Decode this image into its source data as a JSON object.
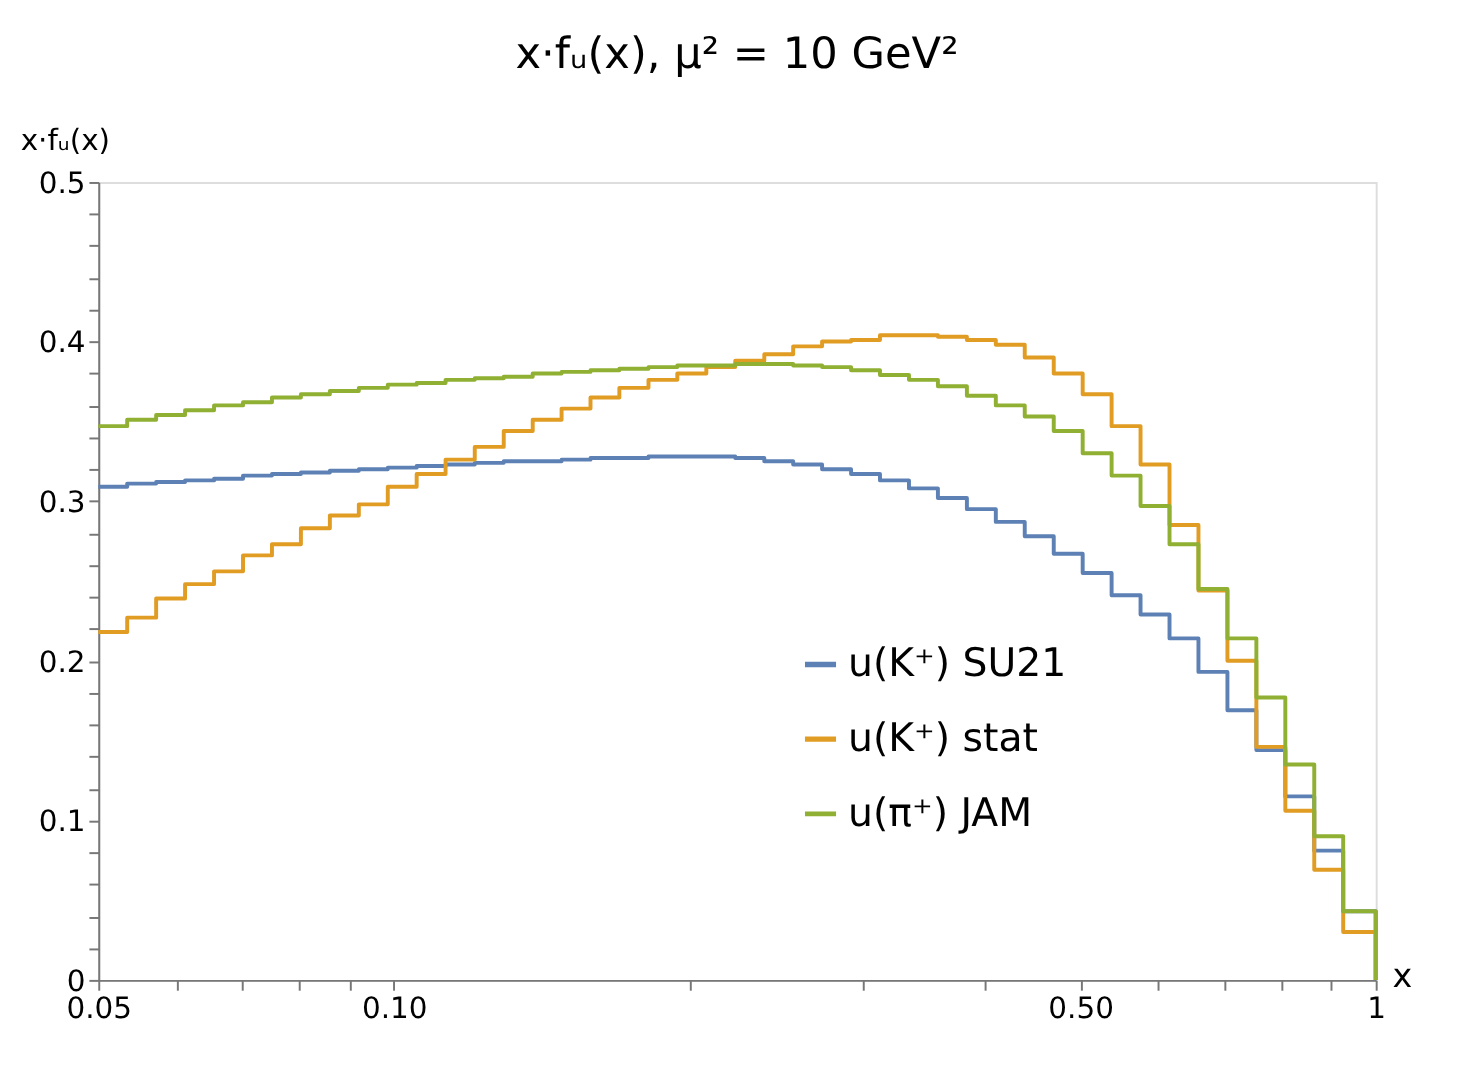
{
  "chart_data": {
    "type": "step",
    "title": "x·fᵤ(x), μ² = 10 GeV²",
    "xlabel": "x",
    "ylabel": "x·fᵤ(x)",
    "log": "x",
    "x": [
      0.05,
      0.05351,
      0.05727,
      0.06129,
      0.0656,
      0.07021,
      0.07514,
      0.08042,
      0.08607,
      0.09212,
      0.09859,
      0.1055,
      0.1129,
      0.1209,
      0.1294,
      0.1385,
      0.1482,
      0.1586,
      0.1697,
      0.1817,
      0.1944,
      0.2081,
      0.2227,
      0.2384,
      0.2551,
      0.273,
      0.2922,
      0.3127,
      0.3347,
      0.3582,
      0.3834,
      0.4103,
      0.4391,
      0.47,
      0.503,
      0.5383,
      0.5761,
      0.6166,
      0.6599,
      0.7063,
      0.7559,
      0.809,
      0.8658,
      0.9266,
      1.0
    ],
    "series": [
      {
        "name": "u(K⁺) SU21",
        "color": "#5e81b5",
        "values": [
          0.309,
          0.311,
          0.312,
          0.313,
          0.314,
          0.316,
          0.317,
          0.318,
          0.319,
          0.32,
          0.321,
          0.322,
          0.323,
          0.324,
          0.325,
          0.325,
          0.326,
          0.327,
          0.327,
          0.328,
          0.328,
          0.328,
          0.327,
          0.325,
          0.323,
          0.32,
          0.317,
          0.313,
          0.308,
          0.302,
          0.295,
          0.287,
          0.278,
          0.267,
          0.255,
          0.241,
          0.229,
          0.214,
          0.193,
          0.169,
          0.144,
          0.115,
          0.081,
          0.043,
          0
        ]
      },
      {
        "name": "u(K⁺) stat",
        "color": "#e19c24",
        "values": [
          0.218,
          0.227,
          0.239,
          0.248,
          0.256,
          0.266,
          0.273,
          0.283,
          0.291,
          0.298,
          0.309,
          0.317,
          0.326,
          0.334,
          0.344,
          0.351,
          0.358,
          0.365,
          0.371,
          0.376,
          0.38,
          0.384,
          0.388,
          0.392,
          0.397,
          0.4,
          0.401,
          0.404,
          0.404,
          0.403,
          0.401,
          0.398,
          0.39,
          0.38,
          0.367,
          0.347,
          0.323,
          0.285,
          0.244,
          0.2,
          0.146,
          0.106,
          0.069,
          0.03,
          0
        ]
      },
      {
        "name": "u(π⁺) JAM",
        "color": "#8fb032",
        "values": [
          0.347,
          0.351,
          0.354,
          0.357,
          0.36,
          0.362,
          0.365,
          0.367,
          0.369,
          0.371,
          0.373,
          0.374,
          0.376,
          0.377,
          0.378,
          0.38,
          0.381,
          0.382,
          0.383,
          0.384,
          0.385,
          0.385,
          0.386,
          0.386,
          0.385,
          0.384,
          0.382,
          0.379,
          0.376,
          0.372,
          0.366,
          0.36,
          0.353,
          0.344,
          0.33,
          0.316,
          0.297,
          0.273,
          0.245,
          0.214,
          0.177,
          0.135,
          0.09,
          0.043,
          0
        ]
      }
    ],
    "xlim": [
      0.05,
      1
    ],
    "xticks": [
      0.05,
      {
        "value": 0.06,
        "label": null
      },
      {
        "value": 0.07,
        "label": null
      },
      {
        "value": 0.08,
        "label": null
      },
      {
        "value": 0.09,
        "label": null
      },
      {
        "value": 0.1,
        "label": "0.10"
      },
      {
        "value": 0.2,
        "label": null
      },
      {
        "value": 0.3,
        "label": null
      },
      {
        "value": 0.4,
        "label": null
      },
      {
        "value": 0.5,
        "label": "0.50"
      },
      {
        "value": 0.6,
        "label": null
      },
      {
        "value": 0.7,
        "label": null
      },
      {
        "value": 0.8,
        "label": null
      },
      {
        "value": 0.9,
        "label": null
      },
      1
    ],
    "ylim": [
      0,
      0.5
    ],
    "yticks": [
      0,
      {
        "value": 0.02,
        "label": null
      },
      {
        "value": 0.04,
        "label": null
      },
      {
        "value": 0.06,
        "label": null
      },
      {
        "value": 0.08,
        "label": null
      },
      0.1,
      {
        "value": 0.12,
        "label": null
      },
      {
        "value": 0.14,
        "label": null
      },
      {
        "value": 0.16,
        "label": null
      },
      {
        "value": 0.18,
        "label": null
      },
      0.2,
      {
        "value": 0.22,
        "label": null
      },
      {
        "value": 0.24,
        "label": null
      },
      {
        "value": 0.26,
        "label": null
      },
      {
        "value": 0.28,
        "label": null
      },
      0.3,
      {
        "value": 0.32,
        "label": null
      },
      {
        "value": 0.34,
        "label": null
      },
      {
        "value": 0.36,
        "label": null
      },
      {
        "value": 0.38,
        "label": null
      },
      0.4,
      {
        "value": 0.42,
        "label": null
      },
      {
        "value": 0.44,
        "label": null
      },
      {
        "value": 0.46,
        "label": null
      },
      {
        "value": 0.48,
        "label": null
      },
      0.5
    ],
    "grid": false,
    "legend": "bottom right"
  }
}
